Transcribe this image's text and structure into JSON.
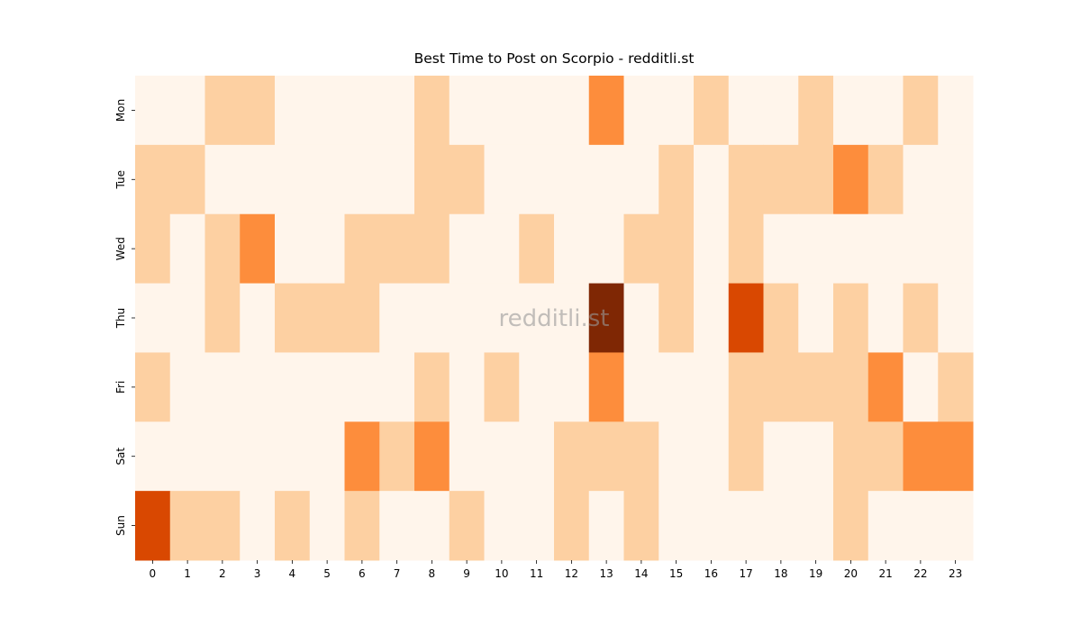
{
  "chart_data": {
    "type": "heatmap",
    "title": "Best Time to Post on Scorpio - redditli.st",
    "watermark": "redditli.st",
    "x_categories": [
      "0",
      "1",
      "2",
      "3",
      "4",
      "5",
      "6",
      "7",
      "8",
      "9",
      "10",
      "11",
      "12",
      "13",
      "14",
      "15",
      "16",
      "17",
      "18",
      "19",
      "20",
      "21",
      "22",
      "23"
    ],
    "y_categories": [
      "Mon",
      "Tue",
      "Wed",
      "Thu",
      "Fri",
      "Sat",
      "Sun"
    ],
    "values": [
      [
        0,
        0,
        1,
        1,
        0,
        0,
        0,
        0,
        1,
        0,
        0,
        0,
        0,
        2,
        0,
        0,
        1,
        0,
        0,
        1,
        0,
        0,
        1,
        0
      ],
      [
        1,
        1,
        0,
        0,
        0,
        0,
        0,
        0,
        1,
        1,
        0,
        0,
        0,
        0,
        0,
        1,
        0,
        1,
        1,
        1,
        2,
        1,
        0,
        0
      ],
      [
        1,
        0,
        1,
        2,
        0,
        0,
        1,
        1,
        1,
        0,
        0,
        1,
        0,
        0,
        1,
        1,
        0,
        1,
        0,
        0,
        0,
        0,
        0,
        0
      ],
      [
        0,
        0,
        1,
        0,
        1,
        1,
        1,
        0,
        0,
        0,
        0,
        0,
        0,
        4,
        0,
        1,
        0,
        3,
        1,
        0,
        1,
        0,
        1,
        0
      ],
      [
        1,
        0,
        0,
        0,
        0,
        0,
        0,
        0,
        1,
        0,
        1,
        0,
        0,
        2,
        0,
        0,
        0,
        1,
        1,
        1,
        1,
        2,
        0,
        1
      ],
      [
        0,
        0,
        0,
        0,
        0,
        0,
        2,
        1,
        2,
        0,
        0,
        0,
        1,
        1,
        1,
        0,
        0,
        1,
        0,
        0,
        1,
        1,
        2,
        2
      ],
      [
        3,
        1,
        1,
        0,
        1,
        0,
        1,
        0,
        0,
        1,
        0,
        0,
        1,
        0,
        1,
        0,
        0,
        0,
        0,
        0,
        1,
        0,
        0,
        0
      ]
    ],
    "clim": [
      0,
      4
    ],
    "colorscale": [
      "#fff5eb",
      "#fdd0a2",
      "#fd8d3c",
      "#d94801",
      "#7f2704"
    ]
  }
}
